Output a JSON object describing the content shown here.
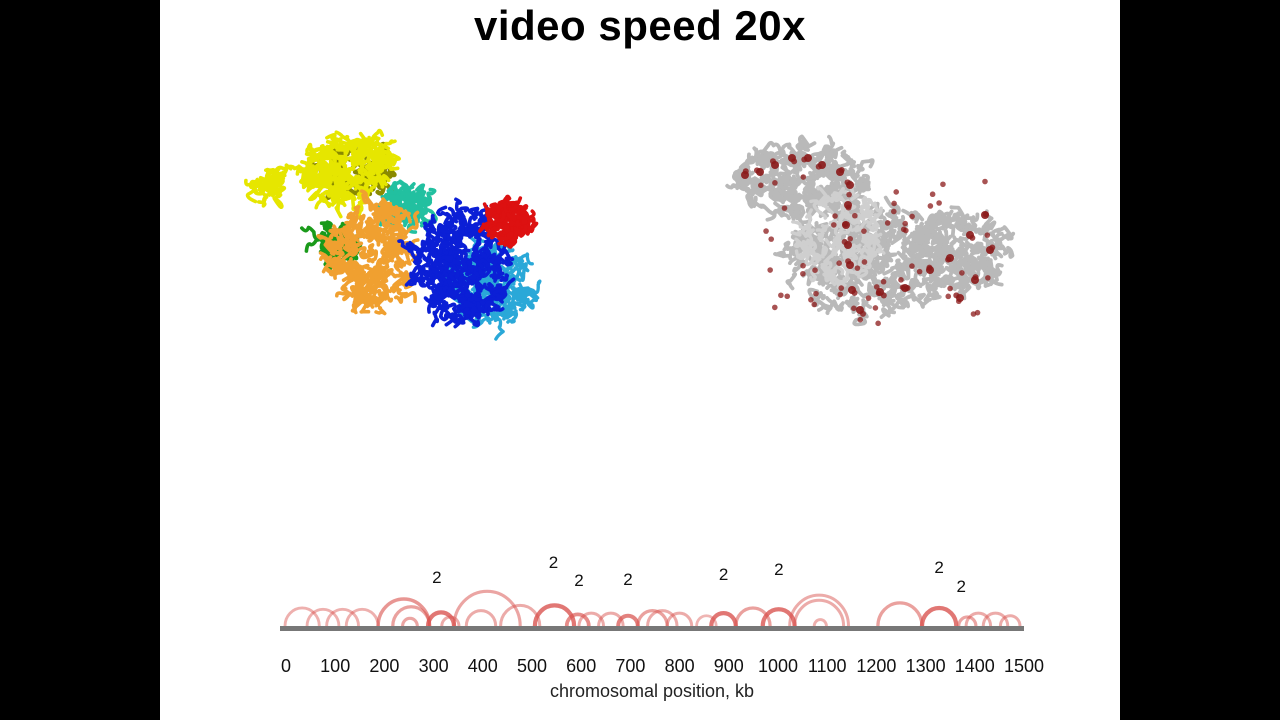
{
  "title": "video speed 20x",
  "colors": {
    "background_side": "#000000",
    "frame": "#ffffff",
    "arc": "#d9534f",
    "baseline": "#777777",
    "structure_left_palette": [
      "#e6e600",
      "#f0a030",
      "#1a9a1a",
      "#22c0a0",
      "#0b1fd6",
      "#2aa8d8",
      "#dd1111"
    ],
    "structure_right_gray": "#b9b9b9",
    "structure_right_beads": "#8b1a1a"
  },
  "panels": {
    "left": {
      "icon": "chromosome-structure-colored-icon"
    },
    "right": {
      "icon": "chromosome-structure-gray-icon"
    }
  },
  "chart_data": {
    "type": "arc",
    "xlabel": "chromosomal position, kb",
    "xlim": [
      0,
      1500
    ],
    "ticks": [
      0,
      100,
      200,
      300,
      400,
      500,
      600,
      700,
      800,
      900,
      1000,
      1100,
      1200,
      1300,
      1400,
      1500
    ],
    "arcs": [
      {
        "start": 0,
        "end": 70,
        "strength": 0.35
      },
      {
        "start": 45,
        "end": 110,
        "strength": 0.35
      },
      {
        "start": 85,
        "end": 150,
        "strength": 0.35
      },
      {
        "start": 125,
        "end": 190,
        "strength": 0.35
      },
      {
        "start": 190,
        "end": 295,
        "strength": 0.6
      },
      {
        "start": 220,
        "end": 295,
        "strength": 0.5
      },
      {
        "start": 240,
        "end": 270,
        "strength": 0.45
      },
      {
        "start": 292,
        "end": 345,
        "strength": 0.9
      },
      {
        "start": 320,
        "end": 355,
        "strength": 0.4
      },
      {
        "start": 345,
        "end": 480,
        "strength": 0.45
      },
      {
        "start": 370,
        "end": 430,
        "strength": 0.4
      },
      {
        "start": 440,
        "end": 520,
        "strength": 0.4
      },
      {
        "start": 510,
        "end": 590,
        "strength": 0.9
      },
      {
        "start": 575,
        "end": 620,
        "strength": 0.7
      },
      {
        "start": 600,
        "end": 650,
        "strength": 0.4
      },
      {
        "start": 640,
        "end": 690,
        "strength": 0.4
      },
      {
        "start": 680,
        "end": 720,
        "strength": 0.8
      },
      {
        "start": 720,
        "end": 780,
        "strength": 0.5
      },
      {
        "start": 740,
        "end": 800,
        "strength": 0.4
      },
      {
        "start": 780,
        "end": 830,
        "strength": 0.4
      },
      {
        "start": 840,
        "end": 880,
        "strength": 0.3
      },
      {
        "start": 870,
        "end": 920,
        "strength": 0.9
      },
      {
        "start": 920,
        "end": 990,
        "strength": 0.5
      },
      {
        "start": 975,
        "end": 1040,
        "strength": 0.9
      },
      {
        "start": 1030,
        "end": 1150,
        "strength": 0.4
      },
      {
        "start": 1040,
        "end": 1140,
        "strength": 0.4
      },
      {
        "start": 1080,
        "end": 1105,
        "strength": 0.35
      },
      {
        "start": 1210,
        "end": 1300,
        "strength": 0.5
      },
      {
        "start": 1300,
        "end": 1370,
        "strength": 0.9
      },
      {
        "start": 1375,
        "end": 1410,
        "strength": 0.45
      },
      {
        "start": 1390,
        "end": 1440,
        "strength": 0.4
      },
      {
        "start": 1425,
        "end": 1475,
        "strength": 0.4
      },
      {
        "start": 1460,
        "end": 1500,
        "strength": 0.4
      }
    ],
    "count_labels": [
      {
        "x": 310,
        "text": "2"
      },
      {
        "x": 548,
        "text": "2"
      },
      {
        "x": 600,
        "text": "2"
      },
      {
        "x": 700,
        "text": "2"
      },
      {
        "x": 895,
        "text": "2"
      },
      {
        "x": 1008,
        "text": "2"
      },
      {
        "x": 1335,
        "text": "2"
      },
      {
        "x": 1380,
        "text": "2"
      }
    ]
  }
}
